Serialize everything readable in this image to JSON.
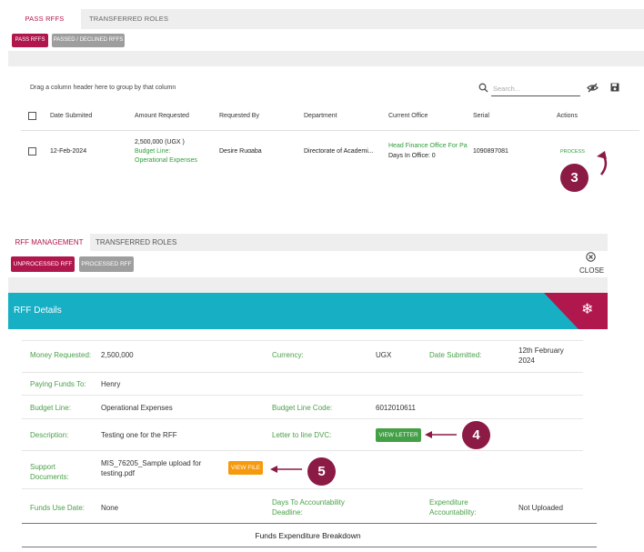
{
  "panel1": {
    "tabs": [
      {
        "label": "PASS RFFS",
        "active": true
      },
      {
        "label": "TRANSFERRED ROLES",
        "active": false
      }
    ],
    "buttons": {
      "pass": "PASS RFFS",
      "passed_declined": "PASSED / DECLINED RFFS"
    },
    "group_hint": "Drag a column header here to group by that column",
    "search_placeholder": "Search...",
    "columns": [
      "Date Submited",
      "Amount Requested",
      "Requested By",
      "Department",
      "Current Office",
      "Serial",
      "Actions"
    ],
    "row": {
      "date": "12-Feb-2024",
      "amount": "2,500,000 (UGX )",
      "budget_line_label": "Budget Line:",
      "budget_line_value": "Operational Expenses",
      "requested_by": "Desire Rugaba",
      "department": "Directorate of Academi...",
      "office": "Head Finance Office For Pa",
      "days_in_office": "Days In Office: 0",
      "serial": "1090897081",
      "action": "PROCESS"
    },
    "step_badge": "3"
  },
  "panel2": {
    "tabs": [
      {
        "label": "RFF MANAGEMENT",
        "active": true
      },
      {
        "label": "TRANSFERRED ROLES",
        "active": false
      }
    ],
    "buttons": {
      "unprocessed": "UNPROCESSED RFF",
      "processed": "PROCESSED RFF"
    },
    "close_label": "CLOSE",
    "details_title": "RFF Details",
    "fields": {
      "money_requested_label": "Money Requested:",
      "money_requested": "2,500,000",
      "currency_label": "Currency:",
      "currency": "UGX",
      "date_submitted_label": "Date Submitted:",
      "date_submitted_line1": "12th February",
      "date_submitted_line2": "2024",
      "paying_funds_label": "Paying Funds To:",
      "paying_funds": "Henry",
      "budget_line_label": "Budget Line:",
      "budget_line": "Operational Expenses",
      "budget_code_label": "Budget Line Code:",
      "budget_code": "6012010611",
      "description_label": "Description:",
      "description": "Testing one for the RFF",
      "letter_label": "Letter to line DVC:",
      "view_letter": "VIEW LETTER",
      "support_label_line1": "Support",
      "support_label_line2": "Documents:",
      "support_file_line1": "MIS_76205_Sample upload for",
      "support_file_line2": "testing.pdf",
      "view_file": "VIEW FILE",
      "funds_use_label": "Funds Use Date:",
      "funds_use": "None",
      "days_accountability_line1": "Days To Accountability",
      "days_accountability_line2": "Deadline:",
      "expenditure_line1": "Expenditure",
      "expenditure_line2": "Accountability:",
      "expenditure_value": "Not Uploaded"
    },
    "breakdown_title": "Funds Expenditure Breakdown",
    "step_badges": [
      "4",
      "5"
    ]
  },
  "colors": {
    "accent": "#b0174c",
    "teal": "#17afc4",
    "green": "#43a047",
    "orange": "#f59a0c",
    "badge": "#8b1a45"
  }
}
